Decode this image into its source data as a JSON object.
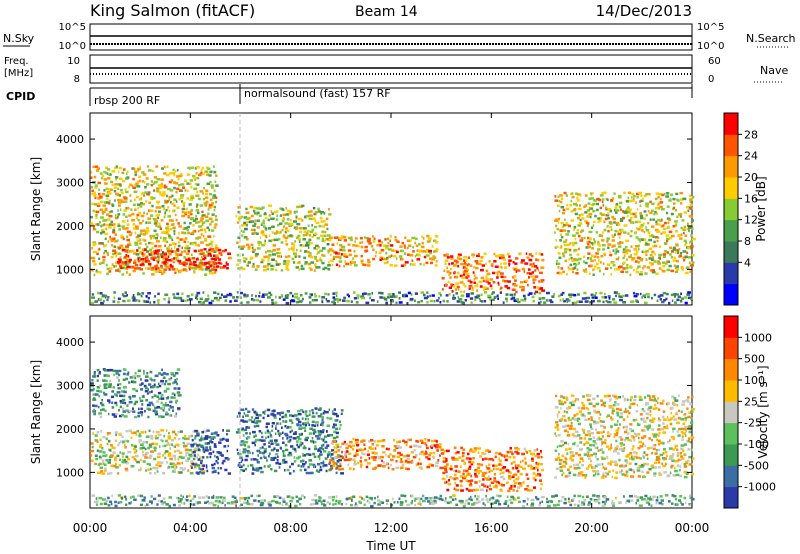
{
  "header": {
    "station": "King Salmon (fitACF)",
    "beam": "Beam 14",
    "date": "14/Dec/2013"
  },
  "top_panels": {
    "nsky_label": "N.Sky",
    "nsky_ticks": [
      "10^5",
      "10^0"
    ],
    "nsearch_label": "N.Search",
    "nsearch_ticks": [
      "10^5",
      "10^0"
    ],
    "freq_label_1": "Freq.",
    "freq_label_2": "[MHz]",
    "freq_ticks": [
      "10",
      "8"
    ],
    "nave_label": "Nave",
    "nave_ticks": [
      "60",
      "0"
    ],
    "cpid_label": "CPID",
    "cpid_segments": [
      {
        "label": "rbsp 200 RF",
        "start_hour": 0.0
      },
      {
        "label": "normalsound (fast) 157 RF",
        "start_hour": 6.0
      }
    ]
  },
  "chart_data": [
    {
      "type": "heatmap",
      "name": "power-panel",
      "ylabel": "Slant Range [km]",
      "xlabel": "Time UT",
      "xlim_hours": [
        0,
        24
      ],
      "ylim_km": [
        180,
        4600
      ],
      "y_ticks": [
        1000,
        2000,
        3000,
        4000
      ],
      "x_tick_labels": [
        "00:00",
        "04:00",
        "08:00",
        "12:00",
        "16:00",
        "20:00",
        "00:00"
      ],
      "x_tick_hours": [
        0,
        4,
        8,
        12,
        16,
        20,
        24
      ],
      "colorbar": {
        "label": "Power [dB]",
        "ticks": [
          "28",
          "24",
          "20",
          "16",
          "12",
          "8",
          "4"
        ],
        "colors": [
          "#0000ff",
          "#2a3aaa",
          "#3a7a5a",
          "#4aa04a",
          "#88cc33",
          "#ffcc00",
          "#ff9900",
          "#ff5500",
          "#ff0000"
        ]
      },
      "echo_regions": [
        {
          "t0": 0.0,
          "t1": 5.0,
          "r0": 900,
          "r1": 3400,
          "level": 0.6
        },
        {
          "t0": 1.0,
          "t1": 5.5,
          "r0": 1000,
          "r1": 1500,
          "level": 0.9
        },
        {
          "t0": 5.8,
          "t1": 9.5,
          "r0": 1000,
          "r1": 2500,
          "level": 0.55
        },
        {
          "t0": 9.5,
          "t1": 13.8,
          "r0": 1100,
          "r1": 1800,
          "level": 0.7
        },
        {
          "t0": 14.0,
          "t1": 18.0,
          "r0": 500,
          "r1": 1400,
          "level": 0.8
        },
        {
          "t0": 18.5,
          "t1": 24.0,
          "r0": 900,
          "r1": 2800,
          "level": 0.6
        },
        {
          "t0": 0.0,
          "t1": 24.0,
          "r0": 250,
          "r1": 500,
          "level": 0.3
        }
      ]
    },
    {
      "type": "heatmap",
      "name": "velocity-panel",
      "ylabel": "Slant Range [km]",
      "xlabel": "Time UT",
      "xlim_hours": [
        0,
        24
      ],
      "ylim_km": [
        180,
        4600
      ],
      "y_ticks": [
        1000,
        2000,
        3000,
        4000
      ],
      "x_tick_labels": [
        "00:00",
        "04:00",
        "08:00",
        "12:00",
        "16:00",
        "20:00",
        "00:00"
      ],
      "x_tick_hours": [
        0,
        4,
        8,
        12,
        16,
        20,
        24
      ],
      "colorbar": {
        "label": "Velocity [m s⁻¹]",
        "ticks": [
          "1000",
          "500",
          "100",
          "25",
          "-25",
          "-100",
          "-500",
          "-1000"
        ],
        "colors": [
          "#2a3aaa",
          "#3b6ea5",
          "#3d9a55",
          "#5cc05c",
          "#c8c8c0",
          "#ffbb00",
          "#ff8800",
          "#ff4400",
          "#ff0000"
        ]
      },
      "echo_regions": [
        {
          "t0": 0.0,
          "t1": 3.5,
          "r0": 2300,
          "r1": 3400,
          "level": 0.25
        },
        {
          "t0": 0.0,
          "t1": 4.5,
          "r0": 1000,
          "r1": 2000,
          "level": 0.5
        },
        {
          "t0": 4.0,
          "t1": 5.5,
          "r0": 1000,
          "r1": 2000,
          "level": 0.05
        },
        {
          "t0": 5.8,
          "t1": 10.0,
          "r0": 1000,
          "r1": 2500,
          "level": 0.2
        },
        {
          "t0": 9.5,
          "t1": 14.0,
          "r0": 1100,
          "r1": 1800,
          "level": 0.7
        },
        {
          "t0": 14.0,
          "t1": 18.0,
          "r0": 600,
          "r1": 1600,
          "level": 0.75
        },
        {
          "t0": 18.5,
          "t1": 24.0,
          "r0": 900,
          "r1": 2800,
          "level": 0.55
        },
        {
          "t0": 0.0,
          "t1": 24.0,
          "r0": 250,
          "r1": 500,
          "level": 0.35
        }
      ]
    }
  ]
}
